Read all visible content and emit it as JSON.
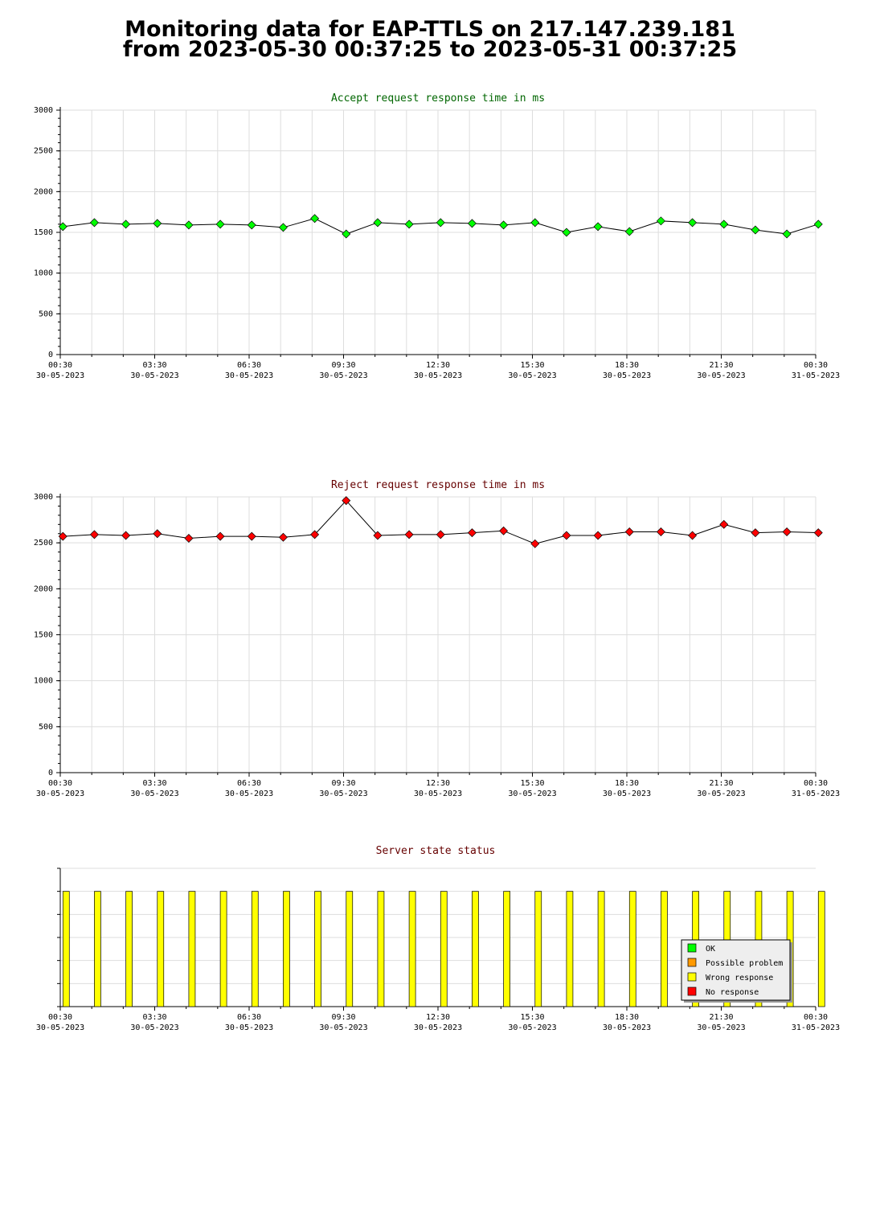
{
  "page": {
    "title_line1": "Monitoring data for EAP-TTLS on 217.147.239.181",
    "title_line2": "from 2023-05-30 00:37:25 to 2023-05-31 00:37:25"
  },
  "colors": {
    "accept_title": "#006600",
    "reject_title": "#660000",
    "status_title": "#660000",
    "accept_marker": "#00ff00",
    "reject_marker": "#ff0000",
    "grid": "#dddddd",
    "status_bar": "#ffff00"
  },
  "chart_data": [
    {
      "type": "line",
      "title": "Accept request response time in ms",
      "ylim": [
        0,
        3000
      ],
      "yticks": [
        "0",
        "500",
        "1000",
        "1500",
        "2000",
        "2500",
        "3000"
      ],
      "xticks": [
        {
          "time": "00:30",
          "date": "30-05-2023"
        },
        {
          "time": "03:30",
          "date": "30-05-2023"
        },
        {
          "time": "06:30",
          "date": "30-05-2023"
        },
        {
          "time": "09:30",
          "date": "30-05-2023"
        },
        {
          "time": "12:30",
          "date": "30-05-2023"
        },
        {
          "time": "15:30",
          "date": "30-05-2023"
        },
        {
          "time": "18:30",
          "date": "30-05-2023"
        },
        {
          "time": "21:30",
          "date": "30-05-2023"
        },
        {
          "time": "00:30",
          "date": "31-05-2023"
        }
      ],
      "x": [
        "00:37",
        "01:37",
        "02:37",
        "03:37",
        "04:37",
        "05:37",
        "06:37",
        "07:37",
        "08:37",
        "09:37",
        "10:37",
        "11:37",
        "12:37",
        "13:37",
        "14:37",
        "15:37",
        "16:37",
        "17:37",
        "18:37",
        "19:37",
        "20:37",
        "21:37",
        "22:37",
        "23:37",
        "00:37"
      ],
      "values": [
        1570,
        1620,
        1600,
        1610,
        1590,
        1600,
        1590,
        1560,
        1670,
        1480,
        1620,
        1600,
        1620,
        1610,
        1590,
        1620,
        1500,
        1570,
        1510,
        1640,
        1620,
        1600,
        1530,
        1480,
        1600
      ],
      "grid": true
    },
    {
      "type": "line",
      "title": "Reject request response time in ms",
      "ylim": [
        0,
        3000
      ],
      "yticks": [
        "0",
        "500",
        "1000",
        "1500",
        "2000",
        "2500",
        "3000"
      ],
      "xticks": [
        {
          "time": "00:30",
          "date": "30-05-2023"
        },
        {
          "time": "03:30",
          "date": "30-05-2023"
        },
        {
          "time": "06:30",
          "date": "30-05-2023"
        },
        {
          "time": "09:30",
          "date": "30-05-2023"
        },
        {
          "time": "12:30",
          "date": "30-05-2023"
        },
        {
          "time": "15:30",
          "date": "30-05-2023"
        },
        {
          "time": "18:30",
          "date": "30-05-2023"
        },
        {
          "time": "21:30",
          "date": "30-05-2023"
        },
        {
          "time": "00:30",
          "date": "31-05-2023"
        }
      ],
      "x": [
        "00:37",
        "01:37",
        "02:37",
        "03:37",
        "04:37",
        "05:37",
        "06:37",
        "07:37",
        "08:37",
        "09:37",
        "10:37",
        "11:37",
        "12:37",
        "13:37",
        "14:37",
        "15:37",
        "16:37",
        "17:37",
        "18:37",
        "19:37",
        "20:37",
        "21:37",
        "22:37",
        "23:37",
        "00:37"
      ],
      "values": [
        2570,
        2590,
        2580,
        2600,
        2550,
        2570,
        2570,
        2560,
        2590,
        2960,
        2580,
        2590,
        2590,
        2610,
        2630,
        2490,
        2580,
        2580,
        2620,
        2620,
        2580,
        2700,
        2610,
        2620,
        2610
      ],
      "grid": true
    },
    {
      "type": "bar",
      "title": "Server state status",
      "xticks": [
        {
          "time": "00:30",
          "date": "30-05-2023"
        },
        {
          "time": "03:30",
          "date": "30-05-2023"
        },
        {
          "time": "06:30",
          "date": "30-05-2023"
        },
        {
          "time": "09:30",
          "date": "30-05-2023"
        },
        {
          "time": "12:30",
          "date": "30-05-2023"
        },
        {
          "time": "15:30",
          "date": "30-05-2023"
        },
        {
          "time": "18:30",
          "date": "30-05-2023"
        },
        {
          "time": "21:30",
          "date": "30-05-2023"
        },
        {
          "time": "00:30",
          "date": "31-05-2023"
        }
      ],
      "x": [
        "00:37",
        "01:37",
        "02:37",
        "03:37",
        "04:37",
        "05:37",
        "06:37",
        "07:37",
        "08:37",
        "09:37",
        "10:37",
        "11:37",
        "12:37",
        "13:37",
        "14:37",
        "15:37",
        "16:37",
        "17:37",
        "18:37",
        "19:37",
        "20:37",
        "21:37",
        "22:37",
        "23:37",
        "00:37"
      ],
      "states": [
        "Wrong response",
        "Wrong response",
        "Wrong response",
        "Wrong response",
        "Wrong response",
        "Wrong response",
        "Wrong response",
        "Wrong response",
        "Wrong response",
        "Wrong response",
        "Wrong response",
        "Wrong response",
        "Wrong response",
        "Wrong response",
        "Wrong response",
        "Wrong response",
        "Wrong response",
        "Wrong response",
        "Wrong response",
        "Wrong response",
        "Wrong response",
        "Wrong response",
        "Wrong response",
        "Wrong response",
        "Wrong response"
      ],
      "legend": [
        {
          "label": "OK",
          "color": "#00ff00"
        },
        {
          "label": "Possible problem",
          "color": "#ff9900"
        },
        {
          "label": "Wrong response",
          "color": "#ffff00"
        },
        {
          "label": "No response",
          "color": "#ff0000"
        }
      ],
      "legend_position": "bottom-right",
      "grid": true
    }
  ]
}
